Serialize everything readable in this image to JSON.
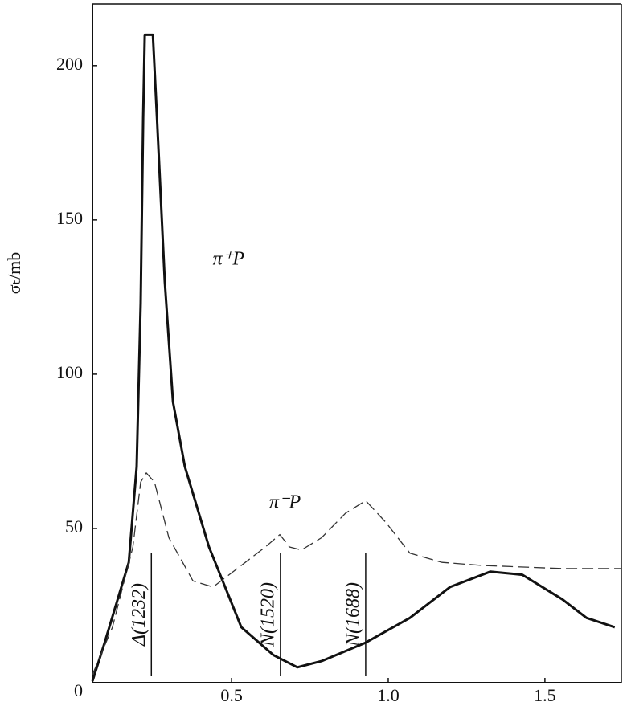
{
  "chart_data": {
    "type": "line",
    "y_label": "σₜ/mb",
    "xlim": [
      0.056,
      1.744
    ],
    "ylim": [
      0,
      220
    ],
    "xticks": [
      0.5,
      {
        "value": 1,
        "label": "1.0"
      },
      1.5
    ],
    "yticks": [
      0,
      50,
      100,
      150,
      200
    ],
    "series": [
      {
        "name": "π⁺P",
        "color": "#111111",
        "style": "solid",
        "x": [
          0.056,
          0.095,
          0.172,
          0.197,
          0.21,
          0.218,
          0.223,
          0.249,
          0.262,
          0.287,
          0.313,
          0.351,
          0.428,
          0.531,
          0.633,
          0.71,
          0.787,
          0.928,
          1.069,
          1.197,
          1.326,
          1.428,
          1.556,
          1.633,
          1.723
        ],
        "values": [
          0.5,
          13,
          39,
          70,
          123,
          183,
          210,
          210,
          183,
          130,
          91,
          70,
          44,
          18,
          9,
          5,
          7,
          13,
          21,
          31,
          36,
          35,
          27,
          21,
          18
        ]
      },
      {
        "name": "π⁻P",
        "color": "#333333",
        "style": "dashed",
        "x": [
          0.056,
          0.12,
          0.185,
          0.21,
          0.228,
          0.254,
          0.3,
          0.377,
          0.441,
          0.531,
          0.608,
          0.654,
          0.685,
          0.723,
          0.787,
          0.864,
          0.928,
          0.992,
          1.069,
          1.172,
          1.3,
          1.556,
          1.744
        ],
        "values": [
          2.6,
          18,
          44,
          65,
          68,
          65,
          47,
          33,
          31,
          38,
          44,
          48,
          44,
          43,
          47,
          55,
          59,
          52,
          42,
          39,
          38,
          37,
          37
        ]
      }
    ],
    "resonances": [
      {
        "label": "Δ(1232)",
        "x": 0.244
      },
      {
        "label": "N(1520)",
        "x": 0.656
      },
      {
        "label": "N(1688)",
        "x": 0.928
      }
    ]
  }
}
